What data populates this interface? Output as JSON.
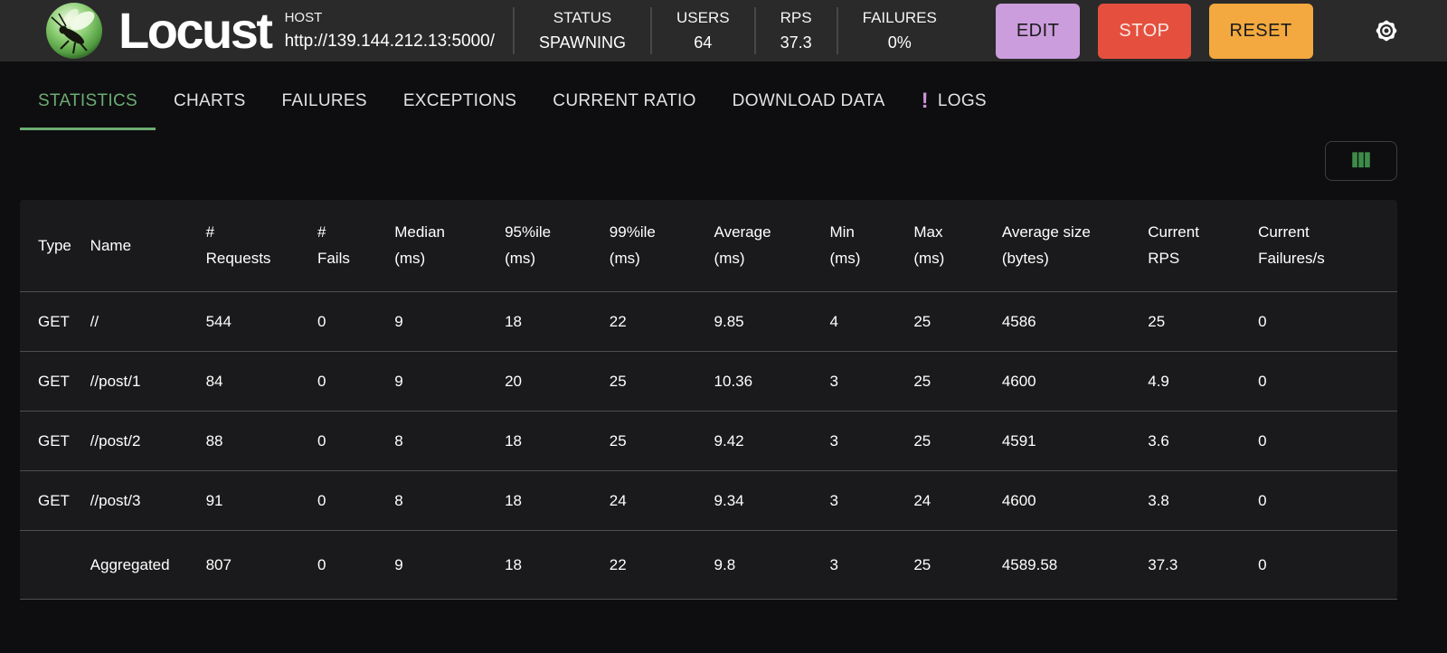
{
  "header": {
    "app_name": "Locust",
    "host": {
      "label": "HOST",
      "url": "http://139.144.212.13:5000/"
    },
    "stats": [
      {
        "label": "STATUS",
        "value": "SPAWNING"
      },
      {
        "label": "USERS",
        "value": "64"
      },
      {
        "label": "RPS",
        "value": "37.3"
      },
      {
        "label": "FAILURES",
        "value": "0%"
      }
    ],
    "buttons": {
      "edit": "EDIT",
      "stop": "STOP",
      "reset": "RESET"
    }
  },
  "tabs": [
    {
      "label": "STATISTICS"
    },
    {
      "label": "CHARTS"
    },
    {
      "label": "FAILURES"
    },
    {
      "label": "EXCEPTIONS"
    },
    {
      "label": "CURRENT RATIO"
    },
    {
      "label": "DOWNLOAD DATA"
    },
    {
      "label": "LOGS",
      "badge": "!"
    }
  ],
  "table": {
    "column_keys": [
      "type",
      "name",
      "requests",
      "fails",
      "median",
      "p95",
      "p99",
      "average",
      "min",
      "max",
      "avg-size",
      "current-rps",
      "current-failures"
    ],
    "columns": [
      {
        "line1": "Type",
        "line2": ""
      },
      {
        "line1": "Name",
        "line2": ""
      },
      {
        "line1": "#",
        "line2": "Requests"
      },
      {
        "line1": "#",
        "line2": "Fails"
      },
      {
        "line1": "Median",
        "line2": "(ms)"
      },
      {
        "line1": "95%ile",
        "line2": "(ms)"
      },
      {
        "line1": "99%ile",
        "line2": "(ms)"
      },
      {
        "line1": "Average",
        "line2": "(ms)"
      },
      {
        "line1": "Min",
        "line2": "(ms)"
      },
      {
        "line1": "Max",
        "line2": "(ms)"
      },
      {
        "line1": "Average size",
        "line2": "(bytes)"
      },
      {
        "line1": "Current",
        "line2": "RPS"
      },
      {
        "line1": "Current",
        "line2": "Failures/s"
      }
    ],
    "rows": [
      [
        "GET",
        "//",
        "544",
        "0",
        "9",
        "18",
        "22",
        "9.85",
        "4",
        "25",
        "4586",
        "25",
        "0"
      ],
      [
        "GET",
        "//post/1",
        "84",
        "0",
        "9",
        "20",
        "25",
        "10.36",
        "3",
        "25",
        "4600",
        "4.9",
        "0"
      ],
      [
        "GET",
        "//post/2",
        "88",
        "0",
        "8",
        "18",
        "25",
        "9.42",
        "3",
        "25",
        "4591",
        "3.6",
        "0"
      ],
      [
        "GET",
        "//post/3",
        "91",
        "0",
        "8",
        "18",
        "24",
        "9.34",
        "3",
        "24",
        "4600",
        "3.8",
        "0"
      ]
    ],
    "total_row": [
      "",
      "Aggregated",
      "807",
      "0",
      "9",
      "18",
      "22",
      "9.8",
      "3",
      "25",
      "4589.58",
      "37.3",
      "0"
    ]
  },
  "colors": {
    "appbar_background": "#2a2a2a",
    "page_background": "#0e0e10",
    "table_background": "#1a1a1c",
    "accent_green_active_tab": "#6cac72",
    "edit_button": "#cc9ddd",
    "stop_button": "#e5503e",
    "reset_button": "#f3a93f",
    "logs_badge_purple": "#ce93d8",
    "column_icon_green": "#3e8c49"
  }
}
